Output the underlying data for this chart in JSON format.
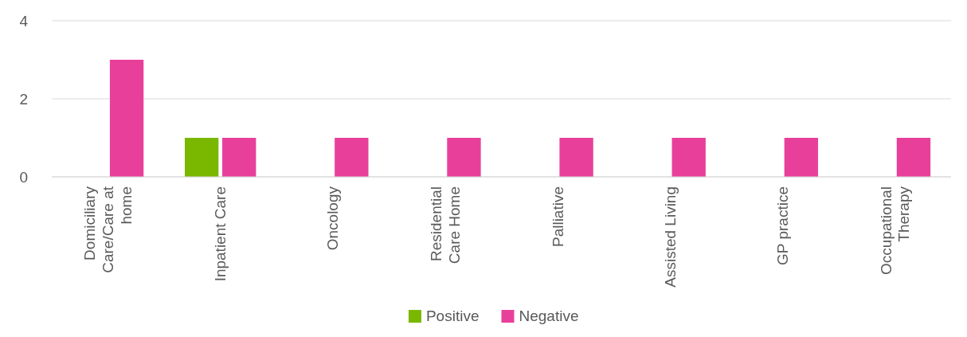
{
  "chart_data": {
    "type": "bar",
    "categories": [
      "Domiciliary Care/Care at home",
      "Inpatient Care",
      "Oncology",
      "Residential Care Home",
      "Palliative",
      "Assisted Living",
      "GP practice",
      "Occupational Therapy"
    ],
    "series": [
      {
        "name": "Positive",
        "color": "#7ab800",
        "values": [
          0,
          1,
          0,
          0,
          0,
          0,
          0,
          0
        ]
      },
      {
        "name": "Negative",
        "color": "#e8409a",
        "values": [
          3,
          1,
          1,
          1,
          1,
          1,
          1,
          1
        ]
      }
    ],
    "ylim": [
      0,
      4
    ],
    "yticks": [
      0,
      2,
      4
    ],
    "grid": "y",
    "legend": "bottom"
  }
}
